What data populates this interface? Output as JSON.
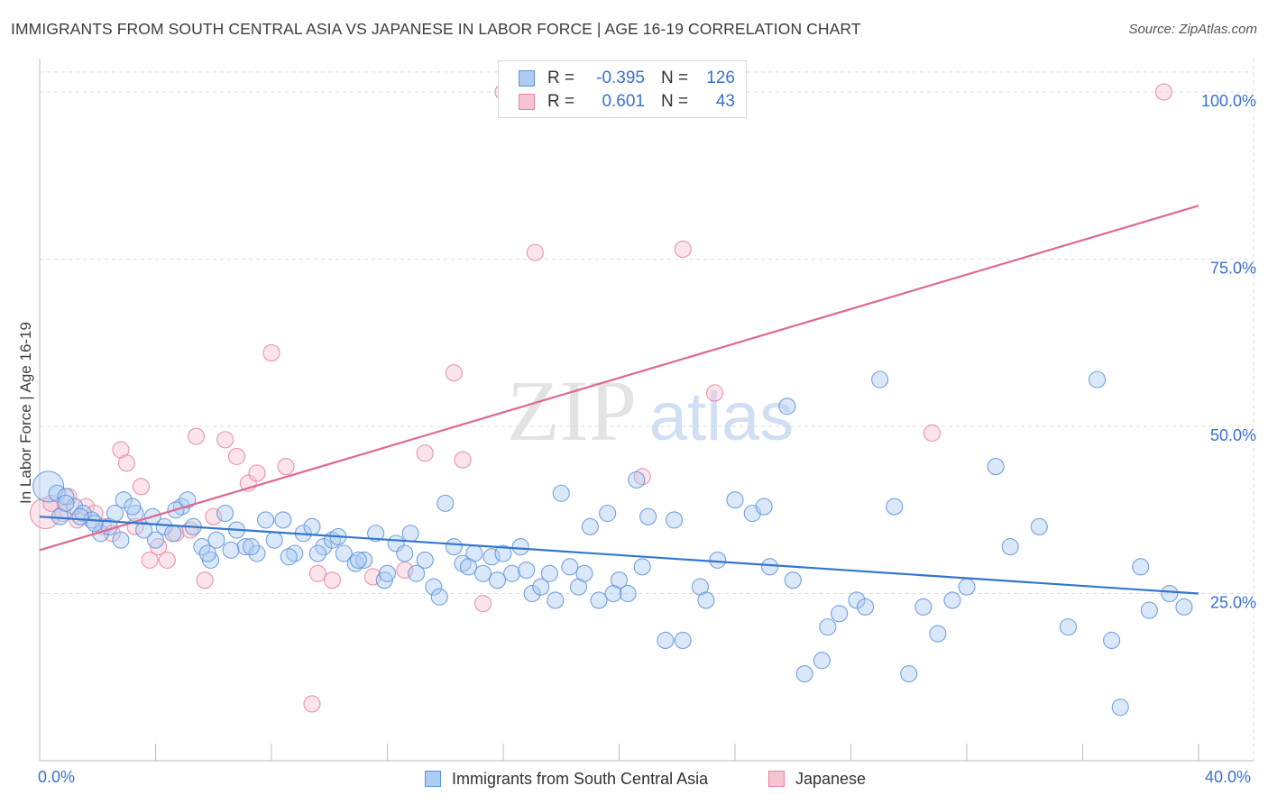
{
  "title": "IMMIGRANTS FROM SOUTH CENTRAL ASIA VS JAPANESE IN LABOR FORCE | AGE 16-19 CORRELATION CHART",
  "source": "Source: ZipAtlas.com",
  "watermark": {
    "zip": "ZIP",
    "atlas": "atlas"
  },
  "legend": {
    "series1": {
      "r_label": "R =",
      "r_value": "-0.395",
      "n_label": "N =",
      "n_value": "126"
    },
    "series2": {
      "r_label": "R =",
      "r_value": "0.601",
      "n_label": "N =",
      "n_value": "43"
    }
  },
  "colors": {
    "blue_fill": "#aecbf2",
    "blue_stroke": "#5d93d8",
    "blue_line": "#3377cc",
    "pink_fill": "#f7c3d3",
    "pink_stroke": "#e6849f",
    "pink_line": "#e06890",
    "tick_text": "#3a6fd0",
    "grid": "#dedede"
  },
  "chart_data": {
    "type": "scatter",
    "title": "IMMIGRANTS FROM SOUTH CENTRAL ASIA VS JAPANESE IN LABOR FORCE | AGE 16-19 CORRELATION CHART",
    "xlabel": "",
    "ylabel": "In Labor Force | Age 16-19",
    "xlim": [
      0,
      40
    ],
    "ylim": [
      0,
      105
    ],
    "x_tick_labels": [
      "0.0%",
      "40.0%"
    ],
    "y_ticks": [
      25,
      50,
      75,
      100
    ],
    "y_tick_labels": [
      "25.0%",
      "50.0%",
      "75.0%",
      "100.0%"
    ],
    "legend_position": "top-center",
    "series": [
      {
        "name": "Immigrants from South Central Asia",
        "color": "blue",
        "trend": {
          "x": [
            0,
            40
          ],
          "y": [
            36.5,
            25.0
          ]
        },
        "points": [
          [
            0.3,
            41
          ],
          [
            0.6,
            40
          ],
          [
            0.9,
            39.5
          ],
          [
            1.2,
            38
          ],
          [
            1.5,
            37
          ],
          [
            1.8,
            36
          ],
          [
            0.7,
            36.5
          ],
          [
            2.1,
            34
          ],
          [
            2.4,
            35
          ],
          [
            2.6,
            37
          ],
          [
            2.9,
            39
          ],
          [
            3.3,
            37
          ],
          [
            3.6,
            34.5
          ],
          [
            3.9,
            36.5
          ],
          [
            4.3,
            35
          ],
          [
            4.6,
            34
          ],
          [
            4.9,
            38
          ],
          [
            5.3,
            35
          ],
          [
            5.6,
            32
          ],
          [
            5.9,
            30
          ],
          [
            6.1,
            33
          ],
          [
            6.4,
            37
          ],
          [
            6.8,
            34.5
          ],
          [
            7.1,
            32
          ],
          [
            7.5,
            31
          ],
          [
            7.8,
            36
          ],
          [
            8.1,
            33
          ],
          [
            8.4,
            36
          ],
          [
            8.8,
            31
          ],
          [
            9.1,
            34
          ],
          [
            9.4,
            35
          ],
          [
            9.8,
            32
          ],
          [
            10.1,
            33
          ],
          [
            10.5,
            31
          ],
          [
            10.9,
            29.5
          ],
          [
            11.2,
            30
          ],
          [
            11.6,
            34
          ],
          [
            11.9,
            27
          ],
          [
            12.3,
            32.5
          ],
          [
            12.6,
            31
          ],
          [
            13.0,
            28
          ],
          [
            13.3,
            30
          ],
          [
            13.6,
            26
          ],
          [
            14.0,
            38.5
          ],
          [
            14.3,
            32
          ],
          [
            14.6,
            29.5
          ],
          [
            15.0,
            31
          ],
          [
            15.3,
            28
          ],
          [
            15.6,
            30.5
          ],
          [
            16.0,
            31
          ],
          [
            16.3,
            28
          ],
          [
            16.6,
            32
          ],
          [
            17.0,
            25
          ],
          [
            17.3,
            26
          ],
          [
            17.6,
            28
          ],
          [
            18.0,
            40
          ],
          [
            18.3,
            29
          ],
          [
            18.6,
            26
          ],
          [
            19.0,
            35
          ],
          [
            19.3,
            24
          ],
          [
            19.6,
            37
          ],
          [
            20.0,
            27
          ],
          [
            20.3,
            25
          ],
          [
            20.6,
            42
          ],
          [
            21.0,
            36.5
          ],
          [
            21.6,
            18
          ],
          [
            22.2,
            18
          ],
          [
            22.8,
            26
          ],
          [
            23.4,
            30
          ],
          [
            24.0,
            39
          ],
          [
            24.6,
            37
          ],
          [
            25.2,
            29
          ],
          [
            25.8,
            53
          ],
          [
            26.4,
            13
          ],
          [
            27.0,
            15
          ],
          [
            27.6,
            22
          ],
          [
            28.2,
            24
          ],
          [
            29.0,
            57
          ],
          [
            30.0,
            13
          ],
          [
            31.0,
            19
          ],
          [
            32.0,
            26
          ],
          [
            33.0,
            44
          ],
          [
            34.5,
            35
          ],
          [
            35.5,
            20
          ],
          [
            36.5,
            57
          ],
          [
            37.0,
            18
          ],
          [
            37.3,
            8
          ],
          [
            38.0,
            29
          ],
          [
            38.3,
            22.5
          ],
          [
            39.0,
            25
          ],
          [
            39.5,
            23
          ],
          [
            0.9,
            38.5
          ],
          [
            1.4,
            36.5
          ],
          [
            1.9,
            35.5
          ],
          [
            2.8,
            33
          ],
          [
            3.2,
            38
          ],
          [
            4.0,
            33
          ],
          [
            4.7,
            37.5
          ],
          [
            5.1,
            39
          ],
          [
            5.8,
            31
          ],
          [
            6.6,
            31.5
          ],
          [
            7.3,
            32
          ],
          [
            8.6,
            30.5
          ],
          [
            9.6,
            31
          ],
          [
            10.3,
            33.5
          ],
          [
            11.0,
            30
          ],
          [
            12.0,
            28
          ],
          [
            12.8,
            34
          ],
          [
            13.8,
            24.5
          ],
          [
            14.8,
            29
          ],
          [
            15.8,
            27
          ],
          [
            16.8,
            28.5
          ],
          [
            17.8,
            24
          ],
          [
            18.8,
            28
          ],
          [
            19.8,
            25
          ],
          [
            20.8,
            29
          ],
          [
            21.9,
            36
          ],
          [
            23.0,
            24
          ],
          [
            25.0,
            38
          ],
          [
            26.0,
            27
          ],
          [
            27.2,
            20
          ],
          [
            28.5,
            23
          ],
          [
            29.5,
            38
          ],
          [
            30.5,
            23
          ],
          [
            31.5,
            24
          ],
          [
            33.5,
            32
          ]
        ]
      },
      {
        "name": "Japanese",
        "color": "pink",
        "trend": {
          "x": [
            0,
            40
          ],
          "y": [
            31.5,
            83.0
          ]
        },
        "points": [
          [
            0.2,
            37
          ],
          [
            0.4,
            38.5
          ],
          [
            0.8,
            37
          ],
          [
            1.0,
            39.5
          ],
          [
            1.3,
            36
          ],
          [
            1.6,
            38
          ],
          [
            1.9,
            37
          ],
          [
            2.2,
            35
          ],
          [
            2.5,
            34
          ],
          [
            2.8,
            46.5
          ],
          [
            3.0,
            44.5
          ],
          [
            3.3,
            35
          ],
          [
            3.5,
            41
          ],
          [
            3.8,
            30
          ],
          [
            4.1,
            32
          ],
          [
            4.4,
            30
          ],
          [
            4.7,
            34
          ],
          [
            5.2,
            34.5
          ],
          [
            5.4,
            48.5
          ],
          [
            5.7,
            27
          ],
          [
            6.0,
            36.5
          ],
          [
            6.4,
            48
          ],
          [
            6.8,
            45.5
          ],
          [
            7.2,
            41.5
          ],
          [
            7.5,
            43
          ],
          [
            8.0,
            61
          ],
          [
            8.5,
            44
          ],
          [
            9.4,
            8.5
          ],
          [
            9.6,
            28
          ],
          [
            10.1,
            27
          ],
          [
            11.5,
            27.5
          ],
          [
            12.6,
            28.5
          ],
          [
            13.3,
            46
          ],
          [
            14.3,
            58
          ],
          [
            14.6,
            45
          ],
          [
            15.3,
            23.5
          ],
          [
            16.0,
            100
          ],
          [
            17.1,
            76
          ],
          [
            20.8,
            42.5
          ],
          [
            22.2,
            76.5
          ],
          [
            23.3,
            55
          ],
          [
            30.8,
            49
          ],
          [
            38.8,
            100
          ]
        ]
      }
    ]
  },
  "bottom_legend": {
    "series1_label": "Immigrants from South Central Asia",
    "series2_label": "Japanese"
  }
}
